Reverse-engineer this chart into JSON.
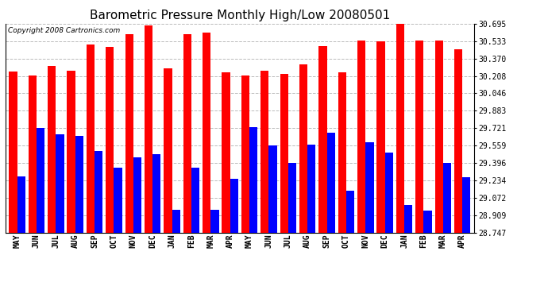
{
  "title": "Barometric Pressure Monthly High/Low 20080501",
  "copyright": "Copyright 2008 Cartronics.com",
  "months": [
    "MAY",
    "JUN",
    "JUL",
    "AUG",
    "SEP",
    "OCT",
    "NOV",
    "DEC",
    "JAN",
    "FEB",
    "MAR",
    "APR",
    "MAY",
    "JUN",
    "JUL",
    "AUG",
    "SEP",
    "OCT",
    "NOV",
    "DEC",
    "JAN",
    "FEB",
    "MAR",
    "APR"
  ],
  "highs": [
    30.25,
    30.21,
    30.3,
    30.26,
    30.5,
    30.48,
    30.6,
    30.68,
    30.28,
    30.6,
    30.61,
    30.24,
    30.21,
    30.26,
    30.23,
    30.32,
    30.49,
    30.24,
    30.54,
    30.53,
    30.71,
    30.54,
    30.54,
    30.46
  ],
  "lows": [
    29.27,
    29.72,
    29.66,
    29.65,
    29.51,
    29.35,
    29.45,
    29.48,
    28.96,
    29.35,
    28.96,
    29.25,
    29.73,
    29.56,
    29.4,
    29.57,
    29.68,
    29.14,
    29.59,
    29.49,
    29.0,
    28.95,
    29.4,
    29.26
  ],
  "bar_width": 0.42,
  "high_color": "#FF0000",
  "low_color": "#0000FF",
  "bg_color": "#FFFFFF",
  "plot_bg_color": "#FFFFFF",
  "grid_color": "#BBBBBB",
  "ylim_min": 28.747,
  "ylim_max": 30.695,
  "yticks": [
    28.747,
    28.909,
    29.072,
    29.234,
    29.396,
    29.559,
    29.721,
    29.883,
    30.046,
    30.208,
    30.37,
    30.533,
    30.695
  ],
  "title_fontsize": 11,
  "tick_fontsize": 7,
  "copyright_fontsize": 6.5
}
